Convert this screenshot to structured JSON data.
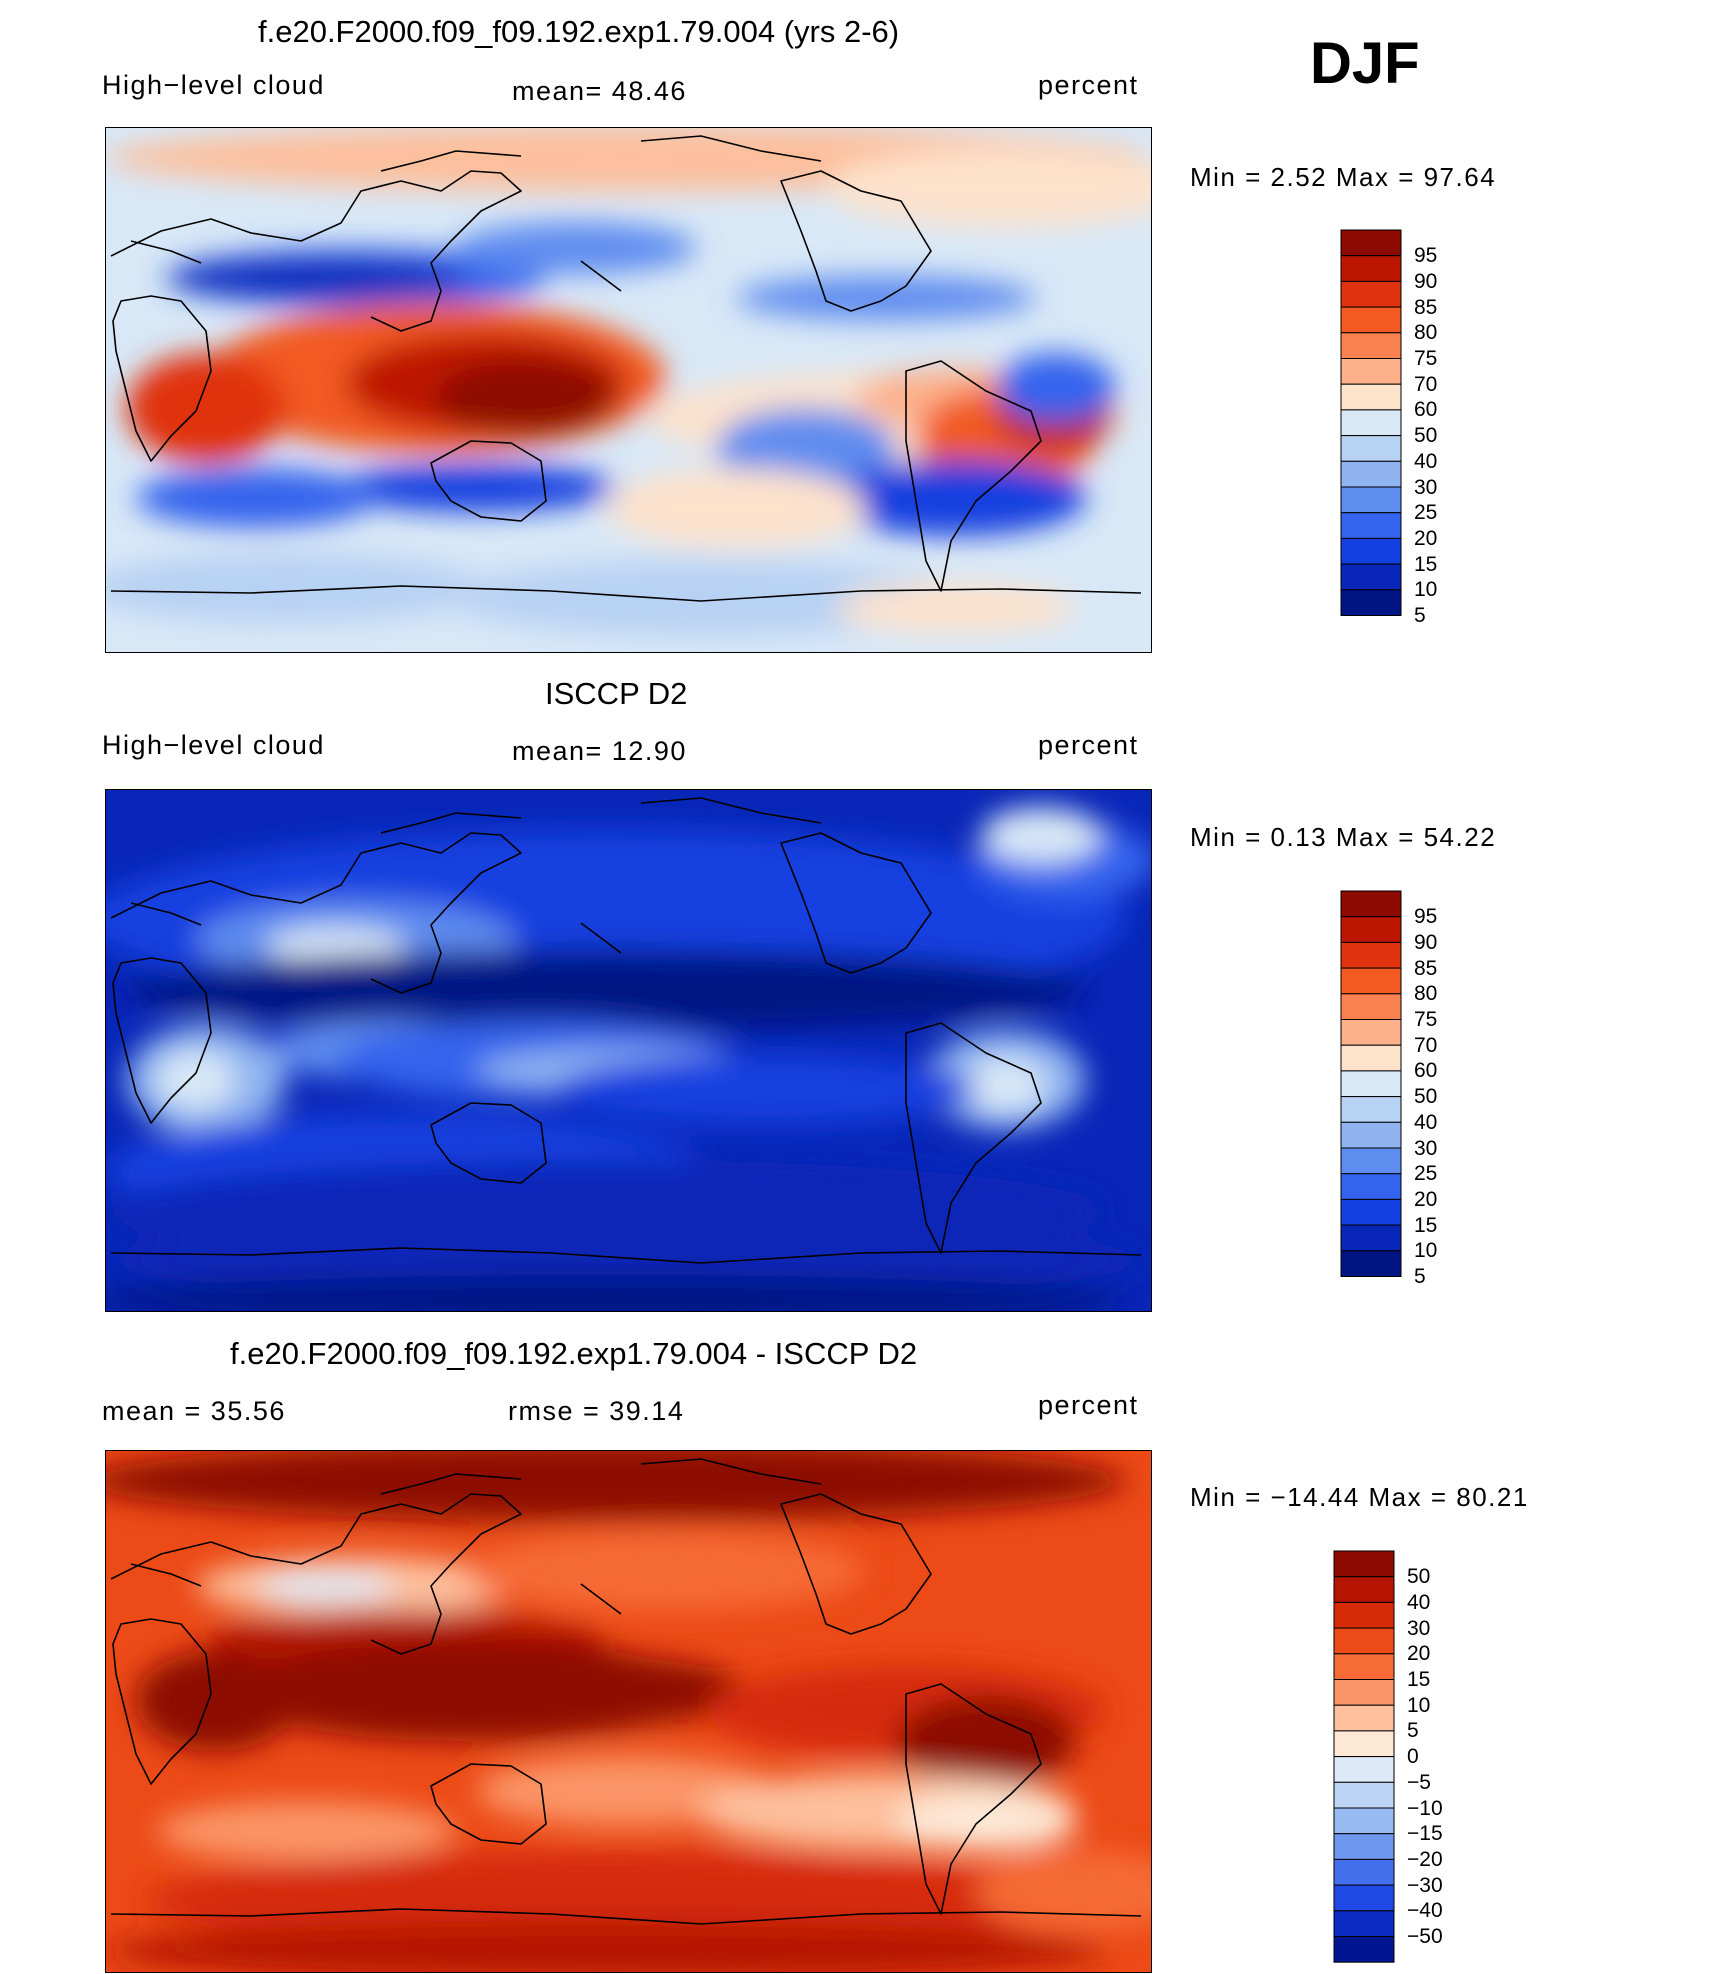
{
  "season": "DJF",
  "panels": [
    {
      "id": "model",
      "title": "f.e20.F2000.f09_f09.192.exp1.79.004 (yrs 2-6)",
      "left_label": "High−level cloud",
      "center_label": "mean=   48.46",
      "right_label": "percent",
      "minmax": "Min =     2.52  Max =    97.64",
      "scale": "standard"
    },
    {
      "id": "obs",
      "title": "ISCCP D2",
      "left_label": "High−level cloud",
      "center_label": "mean=   12.90",
      "right_label": "percent",
      "minmax": "Min =     0.13  Max =    54.22",
      "scale": "standard"
    },
    {
      "id": "diff",
      "title": "f.e20.F2000.f09_f09.192.exp1.79.004 - ISCCP D2",
      "left_label": "mean =    35.56",
      "center_label": "rmse =    39.14",
      "right_label": "percent",
      "minmax": "Min = −14.44  Max =    80.21",
      "scale": "diff"
    }
  ],
  "colorbars": {
    "standard": {
      "colors": [
        "#8c0a00",
        "#bd1600",
        "#e0320e",
        "#f25a22",
        "#fa8250",
        "#fdb08a",
        "#fde2cc",
        "#d8e8f7",
        "#b8d2f3",
        "#8fb4f0",
        "#5e8cef",
        "#3464ed",
        "#1240e0",
        "#0826b8",
        "#001484"
      ],
      "labels": [
        "95",
        "90",
        "85",
        "80",
        "75",
        "70",
        "60",
        "50",
        "40",
        "30",
        "25",
        "20",
        "15",
        "10",
        "5"
      ]
    },
    "diff": {
      "colors": [
        "#8c0a00",
        "#b51400",
        "#d62a08",
        "#ec4a16",
        "#f66b36",
        "#fb9466",
        "#fdbf9c",
        "#fde8d6",
        "#dce9f8",
        "#bcd4f5",
        "#98bbf2",
        "#6e98ef",
        "#4470ee",
        "#1f4ae6",
        "#0a2cc2",
        "#001690"
      ],
      "labels": [
        "50",
        "40",
        "30",
        "20",
        "15",
        "10",
        "5",
        "0",
        "−5",
        "−10",
        "−15",
        "−20",
        "−30",
        "−40",
        "−50"
      ]
    }
  }
}
